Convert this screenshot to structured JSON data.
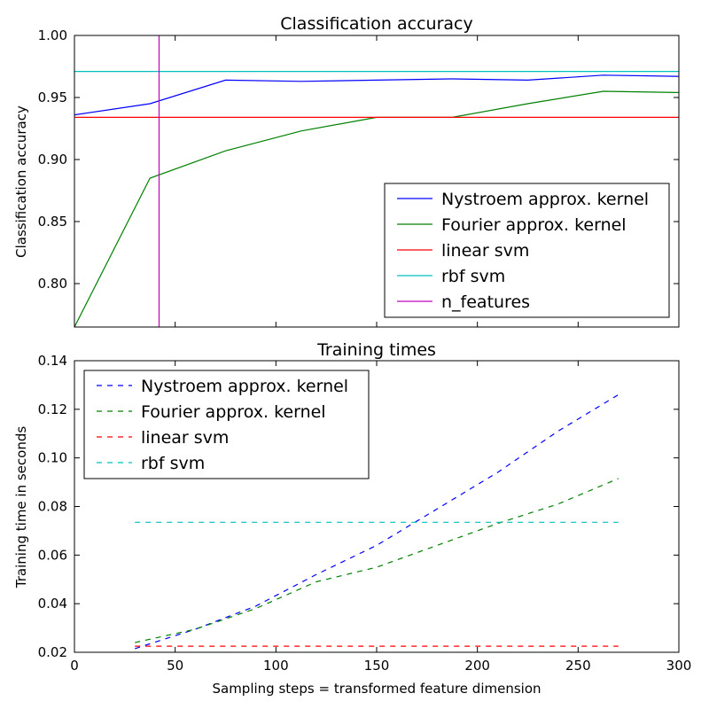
{
  "chart_data": [
    {
      "type": "line",
      "title": "Classification accuracy",
      "xlabel": "",
      "ylabel": "Classification accuracy",
      "xlim": [
        0,
        300
      ],
      "ylim": [
        0.765,
        1.0
      ],
      "yticks": [
        0.8,
        0.85,
        0.9,
        0.95,
        1.0
      ],
      "ytick_labels": [
        "0.80",
        "0.85",
        "0.90",
        "0.95",
        "1.00"
      ],
      "legend_position": "lower-right",
      "series": [
        {
          "name": "Nystroem approx. kernel",
          "color": "#0000ff",
          "style": "solid",
          "x": [
            0,
            37.5,
            75,
            112.5,
            150,
            187.5,
            225,
            262.5,
            300
          ],
          "y": [
            0.936,
            0.945,
            0.964,
            0.963,
            0.964,
            0.965,
            0.964,
            0.968,
            0.967
          ]
        },
        {
          "name": "Fourier approx. kernel",
          "color": "#008000",
          "style": "solid",
          "x": [
            0,
            37.5,
            75,
            112.5,
            150,
            187.5,
            225,
            262.5,
            300
          ],
          "y": [
            0.765,
            0.885,
            0.907,
            0.923,
            0.934,
            0.934,
            0.945,
            0.955,
            0.954
          ]
        },
        {
          "name": "linear svm",
          "color": "#ff0000",
          "style": "solid",
          "x": [
            0,
            300
          ],
          "y": [
            0.934,
            0.934
          ]
        },
        {
          "name": "rbf svm",
          "color": "#00bfbf",
          "style": "solid",
          "x": [
            0,
            300
          ],
          "y": [
            0.971,
            0.971
          ]
        }
      ],
      "vlines": [
        {
          "name": "n_features",
          "color": "#bf00bf",
          "x": 42
        }
      ]
    },
    {
      "type": "line",
      "title": "Training times",
      "xlabel": "Sampling steps = transformed feature dimension",
      "ylabel": "Training time in seconds",
      "xlim": [
        0,
        300
      ],
      "ylim": [
        0.02,
        0.14
      ],
      "xticks": [
        0,
        50,
        100,
        150,
        200,
        250,
        300
      ],
      "xtick_labels": [
        "0",
        "50",
        "100",
        "150",
        "200",
        "250",
        "300"
      ],
      "yticks": [
        0.02,
        0.04,
        0.06,
        0.08,
        0.1,
        0.12,
        0.14
      ],
      "ytick_labels": [
        "0.02",
        "0.04",
        "0.06",
        "0.08",
        "0.10",
        "0.12",
        "0.14"
      ],
      "legend_position": "upper-left",
      "series": [
        {
          "name": "Nystroem approx. kernel",
          "color": "#0000ff",
          "style": "dashed",
          "x": [
            30,
            60,
            90,
            120,
            150,
            180,
            210,
            240,
            270
          ],
          "y": [
            0.0215,
            0.0295,
            0.039,
            0.052,
            0.064,
            0.079,
            0.094,
            0.111,
            0.126
          ]
        },
        {
          "name": "Fourier approx. kernel",
          "color": "#008000",
          "style": "dashed",
          "x": [
            30,
            60,
            90,
            120,
            150,
            180,
            210,
            240,
            270
          ],
          "y": [
            0.024,
            0.0295,
            0.038,
            0.049,
            0.055,
            0.064,
            0.073,
            0.081,
            0.0915
          ]
        },
        {
          "name": "linear svm",
          "color": "#ff0000",
          "style": "dashed",
          "x": [
            30,
            270
          ],
          "y": [
            0.0225,
            0.0225
          ]
        },
        {
          "name": "rbf svm",
          "color": "#00bfbf",
          "style": "dashed",
          "x": [
            30,
            270
          ],
          "y": [
            0.0735,
            0.0735
          ]
        }
      ]
    }
  ]
}
